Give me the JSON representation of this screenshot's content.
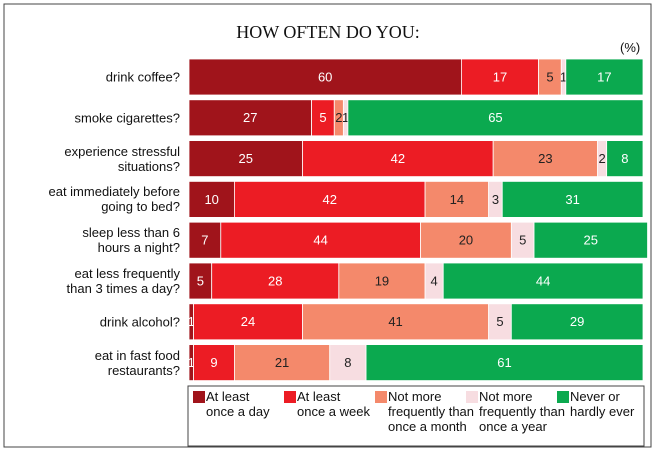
{
  "chart_data": {
    "type": "stacked-bar-horizontal",
    "title": "HOW OFTEN DO YOU:",
    "unit_label": "(%)",
    "categories": [
      "drink coffee?",
      "smoke cigarettes?",
      "experience stressful\nsituations?",
      "eat immediately before\ngoing to bed?",
      "sleep less than 6\nhours a night?",
      "eat less frequently\nthan 3 times a day?",
      "drink alcohol?",
      "eat in fast food\nrestaurants?"
    ],
    "series": [
      {
        "name": "At least\nonce a day",
        "color": "#a0141b",
        "values": [
          60,
          27,
          25,
          10,
          7,
          5,
          1,
          1
        ]
      },
      {
        "name": "At least\nonce a week",
        "color": "#ec1c24",
        "values": [
          17,
          5,
          42,
          42,
          44,
          28,
          24,
          9
        ]
      },
      {
        "name": "Not more\nfrequently than\nonce a month",
        "color": "#f4896b",
        "values": [
          5,
          2,
          23,
          14,
          20,
          19,
          41,
          21
        ]
      },
      {
        "name": "Not more\nfrequently than\nonce a year",
        "color": "#f7dde1",
        "values": [
          1,
          1,
          2,
          3,
          5,
          4,
          5,
          8
        ]
      },
      {
        "name": "Never or\nhardly ever",
        "color": "#0ba94f",
        "values": [
          17,
          65,
          8,
          31,
          25,
          44,
          29,
          61
        ]
      }
    ],
    "xlim": [
      0,
      100
    ]
  }
}
